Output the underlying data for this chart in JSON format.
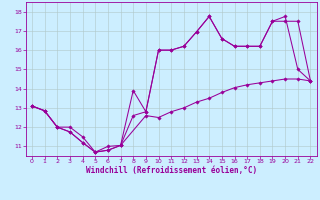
{
  "bg_color": "#cceeff",
  "line_color": "#990099",
  "grid_color": "#b0c8c8",
  "xlabel": "Windchill (Refroidissement éolien,°C)",
  "xlim": [
    -0.5,
    22.5
  ],
  "ylim": [
    10.5,
    18.5
  ],
  "xticks": [
    0,
    1,
    2,
    3,
    4,
    5,
    6,
    7,
    8,
    9,
    10,
    11,
    12,
    13,
    14,
    15,
    16,
    17,
    18,
    19,
    20,
    21,
    22
  ],
  "yticks": [
    11,
    12,
    13,
    14,
    15,
    16,
    17,
    18
  ],
  "series": [
    {
      "x": [
        0,
        1,
        2,
        3,
        4,
        5,
        6,
        7,
        8,
        9,
        10,
        11,
        12,
        13,
        14,
        15,
        16,
        17,
        18,
        19,
        20,
        21,
        22
      ],
      "y": [
        13.1,
        12.85,
        12.0,
        11.75,
        11.2,
        10.7,
        10.8,
        11.05,
        12.6,
        12.8,
        16.0,
        16.0,
        16.2,
        16.95,
        17.75,
        16.6,
        16.2,
        16.2,
        16.2,
        17.5,
        17.5,
        17.5,
        14.4
      ]
    },
    {
      "x": [
        0,
        1,
        2,
        3,
        4,
        5,
        6,
        7,
        8,
        9,
        10,
        11,
        12,
        13,
        14,
        15,
        16,
        17,
        18,
        19,
        20,
        21,
        22
      ],
      "y": [
        13.1,
        12.85,
        12.0,
        11.75,
        11.2,
        10.7,
        10.8,
        11.05,
        13.9,
        12.8,
        16.0,
        16.0,
        16.2,
        16.95,
        17.75,
        16.6,
        16.2,
        16.2,
        16.2,
        17.5,
        17.75,
        15.0,
        14.4
      ]
    },
    {
      "x": [
        0,
        1,
        2,
        3,
        4,
        5,
        6,
        7,
        9,
        10,
        11,
        12,
        13,
        14,
        15,
        16,
        17,
        18,
        19,
        20,
        21,
        22
      ],
      "y": [
        13.1,
        12.85,
        12.0,
        12.0,
        11.5,
        10.7,
        11.0,
        11.05,
        12.6,
        12.5,
        12.8,
        13.0,
        13.3,
        13.5,
        13.8,
        14.05,
        14.2,
        14.3,
        14.4,
        14.5,
        14.5,
        14.4
      ]
    }
  ],
  "marker": "D",
  "markersize": 1.8,
  "linewidth": 0.75,
  "tick_fontsize": 4.5,
  "xlabel_fontsize": 5.5
}
